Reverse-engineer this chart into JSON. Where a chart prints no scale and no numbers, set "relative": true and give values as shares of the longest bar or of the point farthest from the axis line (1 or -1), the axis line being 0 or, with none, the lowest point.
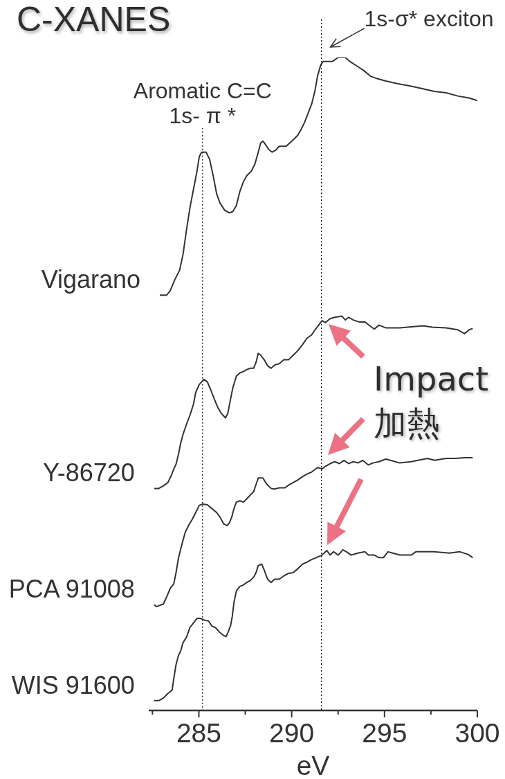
{
  "chart_data": {
    "type": "line",
    "title": "C-XANES",
    "xlabel": "eV",
    "relative": true,
    "marker": "none",
    "xlim": [
      282.3,
      300
    ],
    "xticks": [
      {
        "value": 282.5,
        "label": null
      },
      285,
      {
        "value": 287.5,
        "label": null
      },
      290,
      {
        "value": 292.5,
        "label": null
      },
      295,
      {
        "value": 297.5,
        "label": null
      },
      300
    ],
    "series": [
      {
        "name": "Vigarano",
        "color": "#333333",
        "x": [
          282.9,
          283.27,
          283.46,
          283.71,
          283.96,
          284.15,
          284.33,
          284.52,
          284.71,
          284.9,
          285.02,
          285.15,
          285.39,
          285.58,
          285.77,
          285.96,
          286.14,
          286.39,
          286.64,
          286.83,
          287.02,
          287.21,
          287.39,
          287.58,
          287.83,
          288.02,
          288.2,
          288.33,
          288.45,
          288.58,
          288.77,
          288.95,
          289.14,
          289.33,
          289.7,
          290.01,
          290.33,
          290.51,
          290.7,
          290.89,
          291.08,
          291.26,
          291.39,
          291.57,
          291.7,
          292.2,
          292.51,
          292.89,
          293.13,
          293.51,
          293.88,
          294.26,
          294.57,
          295.07,
          295.69,
          296.44,
          297.07,
          297.69,
          298.32,
          298.94,
          299.56,
          300.0
        ],
        "values": [
          0.636,
          0.636,
          0.643,
          0.66,
          0.674,
          0.699,
          0.735,
          0.77,
          0.798,
          0.826,
          0.848,
          0.855,
          0.855,
          0.844,
          0.819,
          0.791,
          0.777,
          0.766,
          0.762,
          0.764,
          0.773,
          0.795,
          0.809,
          0.819,
          0.826,
          0.837,
          0.855,
          0.869,
          0.872,
          0.867,
          0.859,
          0.855,
          0.858,
          0.864,
          0.864,
          0.872,
          0.881,
          0.89,
          0.901,
          0.915,
          0.929,
          0.95,
          0.971,
          0.989,
          0.994,
          0.994,
          1.0,
          1.0,
          0.994,
          0.987,
          0.98,
          0.971,
          0.968,
          0.964,
          0.96,
          0.956,
          0.952,
          0.948,
          0.946,
          0.941,
          0.938,
          0.934
        ]
      },
      {
        "name": "Y-86720",
        "color": "#333333",
        "x": [
          282.59,
          282.84,
          283.09,
          283.33,
          283.52,
          283.65,
          283.77,
          283.9,
          284.02,
          284.15,
          284.33,
          284.52,
          284.71,
          284.83,
          285.02,
          285.27,
          285.46,
          285.64,
          285.83,
          286.02,
          286.21,
          286.43,
          286.56,
          286.68,
          286.83,
          287.02,
          287.21,
          287.39,
          287.58,
          287.77,
          287.95,
          288.08,
          288.2,
          288.33,
          288.52,
          288.7,
          288.89,
          289.08,
          289.33,
          289.58,
          289.83,
          290.08,
          290.33,
          290.58,
          290.82,
          291.07,
          291.26,
          291.45,
          291.64,
          291.82,
          292.07,
          292.32,
          292.7,
          292.89,
          293.07,
          293.32,
          293.63,
          293.95,
          294.26,
          294.45,
          294.7,
          295.07,
          295.82,
          297.07,
          297.57,
          298.32,
          298.94,
          299.31,
          299.56,
          299.75
        ],
        "values": [
          0.34,
          0.34,
          0.344,
          0.349,
          0.36,
          0.37,
          0.377,
          0.392,
          0.409,
          0.423,
          0.438,
          0.452,
          0.469,
          0.487,
          0.499,
          0.507,
          0.503,
          0.491,
          0.477,
          0.464,
          0.455,
          0.448,
          0.455,
          0.473,
          0.494,
          0.512,
          0.517,
          0.519,
          0.522,
          0.524,
          0.524,
          0.533,
          0.547,
          0.544,
          0.537,
          0.528,
          0.524,
          0.529,
          0.531,
          0.537,
          0.537,
          0.544,
          0.551,
          0.56,
          0.57,
          0.575,
          0.583,
          0.59,
          0.597,
          0.594,
          0.6,
          0.602,
          0.604,
          0.598,
          0.602,
          0.598,
          0.595,
          0.595,
          0.588,
          0.584,
          0.59,
          0.586,
          0.586,
          0.589,
          0.587,
          0.586,
          0.583,
          0.577,
          0.583,
          0.585
        ]
      },
      {
        "name": "PCA 91008",
        "color": "#333333",
        "x": [
          282.59,
          282.71,
          283.09,
          283.27,
          283.46,
          283.65,
          283.77,
          283.9,
          284.02,
          284.15,
          284.27,
          284.46,
          284.65,
          284.83,
          285.02,
          285.21,
          285.46,
          285.71,
          285.96,
          286.14,
          286.33,
          286.52,
          286.64,
          286.77,
          286.89,
          287.02,
          287.21,
          287.39,
          287.58,
          287.77,
          287.95,
          288.08,
          288.2,
          288.45,
          288.64,
          288.89,
          289.08,
          289.33,
          289.64,
          289.83,
          290.08,
          290.33,
          290.58,
          290.82,
          291.07,
          291.39,
          291.64,
          291.82,
          292.07,
          292.32,
          292.57,
          292.82,
          293.07,
          293.32,
          293.57,
          293.82,
          294.13,
          294.38,
          294.7,
          295.07,
          295.32,
          295.82,
          296.44,
          297.32,
          297.69,
          298.32,
          298.81,
          299.31,
          299.75
        ],
        "values": [
          0.162,
          0.159,
          0.163,
          0.174,
          0.187,
          0.194,
          0.211,
          0.233,
          0.247,
          0.261,
          0.273,
          0.284,
          0.293,
          0.303,
          0.314,
          0.316,
          0.315,
          0.309,
          0.303,
          0.296,
          0.286,
          0.283,
          0.287,
          0.296,
          0.309,
          0.319,
          0.321,
          0.319,
          0.324,
          0.33,
          0.335,
          0.346,
          0.356,
          0.356,
          0.347,
          0.34,
          0.339,
          0.341,
          0.341,
          0.345,
          0.349,
          0.353,
          0.358,
          0.362,
          0.365,
          0.372,
          0.37,
          0.374,
          0.378,
          0.381,
          0.378,
          0.383,
          0.378,
          0.381,
          0.379,
          0.383,
          0.376,
          0.379,
          0.381,
          0.385,
          0.383,
          0.379,
          0.381,
          0.386,
          0.383,
          0.386,
          0.386,
          0.387,
          0.387
        ]
      },
      {
        "name": "WIS 91600",
        "color": "#333333",
        "x": [
          282.59,
          282.84,
          283.09,
          283.33,
          283.56,
          283.65,
          283.77,
          283.9,
          284.02,
          284.15,
          284.33,
          284.52,
          284.71,
          284.9,
          285.08,
          285.33,
          285.52,
          285.71,
          285.89,
          286.08,
          286.27,
          286.46,
          286.58,
          286.71,
          286.8,
          286.89,
          287.02,
          287.21,
          287.39,
          287.58,
          287.77,
          287.95,
          288.08,
          288.2,
          288.39,
          288.52,
          288.7,
          288.89,
          289.08,
          289.33,
          289.58,
          289.83,
          290.08,
          290.33,
          290.58,
          290.82,
          291.07,
          291.32,
          291.64,
          291.89,
          292.07,
          292.26,
          292.51,
          292.76,
          292.95,
          293.2,
          293.57,
          293.95,
          294.13,
          294.45,
          294.7,
          294.94,
          295.19,
          295.44,
          295.82,
          296.44,
          296.69,
          297.63,
          298.5,
          299.06,
          299.5,
          299.75
        ],
        "values": [
          0.015,
          0.015,
          0.019,
          0.026,
          0.031,
          0.049,
          0.07,
          0.084,
          0.091,
          0.104,
          0.112,
          0.127,
          0.134,
          0.141,
          0.141,
          0.138,
          0.137,
          0.129,
          0.127,
          0.121,
          0.116,
          0.113,
          0.12,
          0.13,
          0.144,
          0.165,
          0.183,
          0.19,
          0.192,
          0.196,
          0.199,
          0.204,
          0.211,
          0.222,
          0.224,
          0.215,
          0.201,
          0.196,
          0.201,
          0.201,
          0.206,
          0.21,
          0.211,
          0.217,
          0.224,
          0.227,
          0.231,
          0.234,
          0.238,
          0.245,
          0.238,
          0.243,
          0.238,
          0.246,
          0.243,
          0.238,
          0.241,
          0.243,
          0.238,
          0.238,
          0.234,
          0.234,
          0.243,
          0.241,
          0.238,
          0.238,
          0.243,
          0.243,
          0.241,
          0.243,
          0.239,
          0.234
        ]
      }
    ],
    "ref_lines": [
      {
        "axis": "x",
        "value": 285.2,
        "label": "Aromatic C=C\n1s- π *",
        "color": "#000000",
        "line_style": "dotted"
      },
      {
        "axis": "x",
        "value": 291.6,
        "label": "1s-σ* exciton",
        "color": "#000000",
        "line_style": "dotted"
      }
    ],
    "annotations": [
      "Impact\n加熱"
    ]
  }
}
